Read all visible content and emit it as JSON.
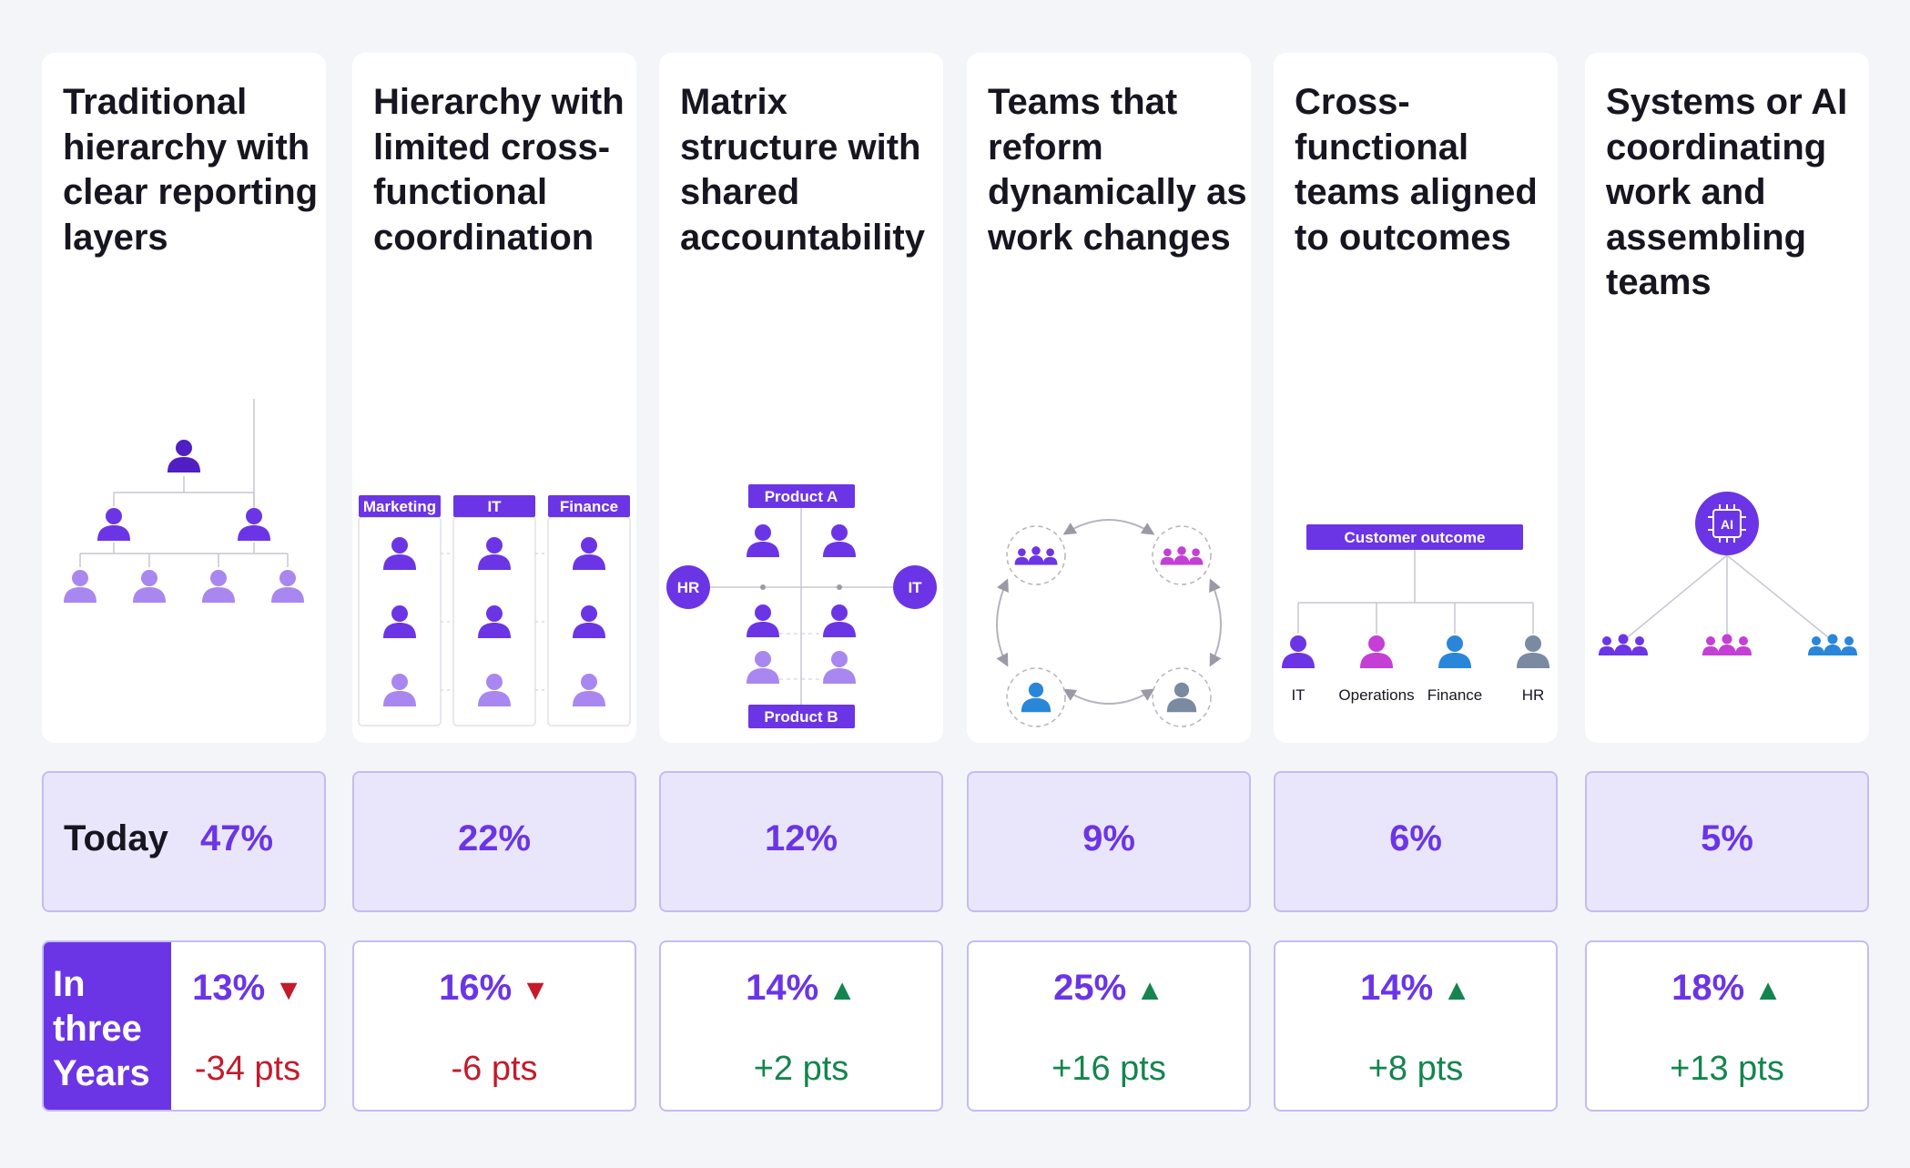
{
  "columns": [
    {
      "title": "Traditional hierarchy with clear reporting layers",
      "today": "47%",
      "future": "13%",
      "trend": "down",
      "change": "-34 pts"
    },
    {
      "title": "Hierarchy with limited cross-functional coordination",
      "today": "22%",
      "future": "16%",
      "trend": "down",
      "change": "-6 pts",
      "depts": [
        "Marketing",
        "IT",
        "Finance"
      ]
    },
    {
      "title": "Matrix structure with shared accountability",
      "today": "12%",
      "future": "14%",
      "trend": "up",
      "change": "+2 pts",
      "products": [
        "Product A",
        "Product B"
      ],
      "sides": [
        "HR",
        "IT"
      ]
    },
    {
      "title": "Teams that reform dynamically as work changes",
      "today": "9%",
      "future": "25%",
      "trend": "up",
      "change": "+16 pts"
    },
    {
      "title": "Cross-functional teams aligned to outcomes",
      "today": "6%",
      "future": "14%",
      "trend": "up",
      "change": "+8 pts",
      "outcome": "Customer outcome",
      "members": [
        "IT",
        "Operations",
        "Finance",
        "HR"
      ]
    },
    {
      "title": "Systems or AI coordinating work and assembling teams",
      "today": "5%",
      "future": "18%",
      "trend": "up",
      "change": "+13 pts",
      "ai_label": "AI"
    }
  ],
  "labels": {
    "today": "Today",
    "three_years": "In three Years"
  },
  "arrows": {
    "down": "▼",
    "up": "▲"
  },
  "colors": {
    "purple": "#6b35e6",
    "dark_purple": "#4f1fc4",
    "light_purple": "#a987f0",
    "magenta": "#c43fd6",
    "blue": "#2a86d9",
    "gray": "#7a8aa1",
    "red": "#c41b2c",
    "green": "#14854e"
  }
}
